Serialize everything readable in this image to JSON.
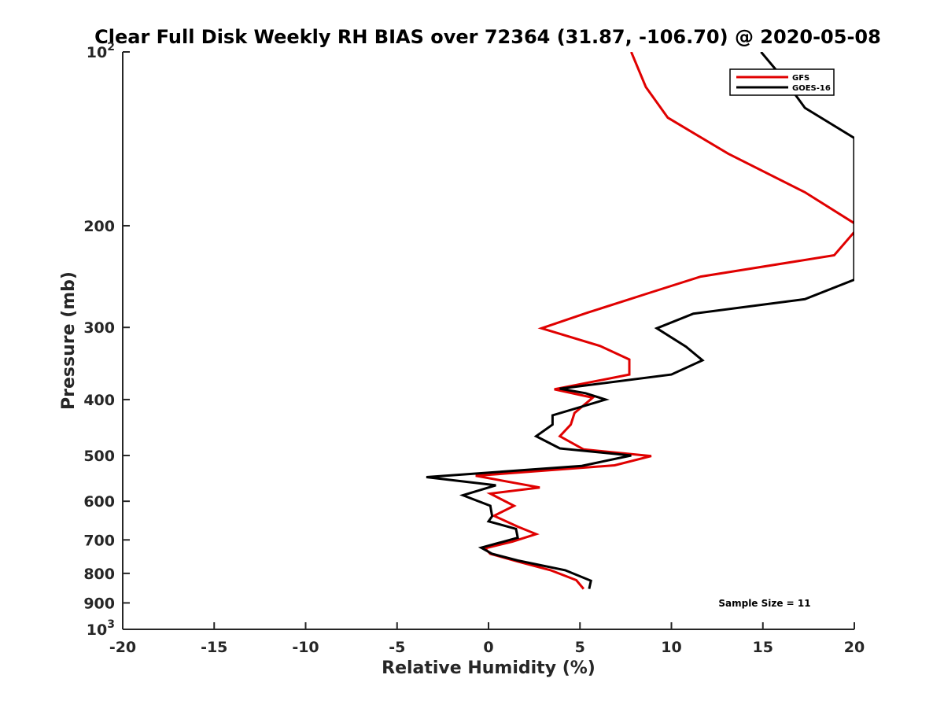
{
  "chart_data": {
    "type": "line",
    "title": "Clear Full Disk Weekly RH BIAS over 72364 (31.87, -106.70) @ 2020-05-08",
    "xlabel": "Relative Humidity (%)",
    "ylabel": "Pressure (mb)",
    "xlim": [
      -20,
      20
    ],
    "ylim": [
      1000,
      100
    ],
    "y_scale": "log",
    "y_reversed": true,
    "x_ticks": [
      "-20",
      "-15",
      "-10",
      "-5",
      "0",
      "5",
      "10",
      "15",
      "20"
    ],
    "y_ticks": [
      {
        "value": 100,
        "base": "10",
        "exp": "2"
      },
      {
        "value": 200,
        "label": "200"
      },
      {
        "value": 300,
        "label": "300"
      },
      {
        "value": 400,
        "label": "400"
      },
      {
        "value": 500,
        "label": "500"
      },
      {
        "value": 600,
        "label": "600"
      },
      {
        "value": 700,
        "label": "700"
      },
      {
        "value": 800,
        "label": "800"
      },
      {
        "value": 900,
        "label": "900"
      },
      {
        "value": 1000,
        "base": "10",
        "exp": "3"
      }
    ],
    "grid": false,
    "legend_position": "top-right",
    "annotation": "Sample Size = 11",
    "series": [
      {
        "name": "GFS",
        "color": "#e00000",
        "points": [
          [
            7.8,
            100
          ],
          [
            8.6,
            115
          ],
          [
            9.8,
            130
          ],
          [
            13.1,
            150
          ],
          [
            17.3,
            175
          ],
          [
            20.0,
            198
          ],
          [
            20.0,
            205
          ],
          [
            18.9,
            225
          ],
          [
            11.6,
            245
          ],
          [
            8.7,
            262
          ],
          [
            5.4,
            283
          ],
          [
            2.9,
            301
          ],
          [
            6.1,
            323
          ],
          [
            7.7,
            341
          ],
          [
            7.7,
            362
          ],
          [
            3.6,
            384
          ],
          [
            5.7,
            397
          ],
          [
            4.7,
            422
          ],
          [
            4.5,
            442
          ],
          [
            3.9,
            463
          ],
          [
            5.2,
            488
          ],
          [
            8.9,
            501
          ],
          [
            6.9,
            520
          ],
          [
            -0.7,
            542
          ],
          [
            2.8,
            568
          ],
          [
            0.1,
            582
          ],
          [
            1.4,
            611
          ],
          [
            0.3,
            636
          ],
          [
            1.6,
            664
          ],
          [
            2.6,
            684
          ],
          [
            1.3,
            705
          ],
          [
            -0.2,
            724
          ],
          [
            0.1,
            740
          ],
          [
            1.6,
            763
          ],
          [
            3.4,
            790
          ],
          [
            4.8,
            822
          ],
          [
            5.2,
            851
          ]
        ]
      },
      {
        "name": "GOES-16",
        "color": "#000000",
        "points": [
          [
            14.9,
            100
          ],
          [
            16.2,
            112
          ],
          [
            17.3,
            125
          ],
          [
            20.0,
            141
          ],
          [
            20.0,
            248
          ],
          [
            17.3,
            268
          ],
          [
            11.2,
            284
          ],
          [
            9.2,
            301
          ],
          [
            10.8,
            324
          ],
          [
            11.7,
            342
          ],
          [
            10.0,
            362
          ],
          [
            3.9,
            383
          ],
          [
            5.3,
            390
          ],
          [
            6.4,
            400
          ],
          [
            3.5,
            426
          ],
          [
            3.5,
            442
          ],
          [
            2.6,
            463
          ],
          [
            3.9,
            486
          ],
          [
            7.8,
            500
          ],
          [
            5.1,
            521
          ],
          [
            -3.4,
            545
          ],
          [
            0.4,
            563
          ],
          [
            -1.4,
            586
          ],
          [
            0.1,
            611
          ],
          [
            0.2,
            637
          ],
          [
            0.0,
            650
          ],
          [
            1.5,
            670
          ],
          [
            1.6,
            694
          ],
          [
            -0.4,
            722
          ],
          [
            0.2,
            740
          ],
          [
            1.6,
            760
          ],
          [
            4.2,
            790
          ],
          [
            5.6,
            824
          ],
          [
            5.5,
            851
          ]
        ]
      }
    ]
  }
}
